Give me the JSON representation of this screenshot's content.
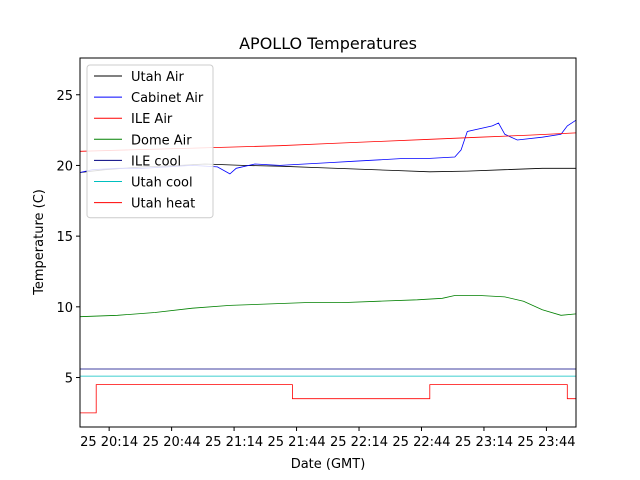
{
  "chart_data": {
    "type": "line",
    "title": "APOLLO Temperatures",
    "xlabel": "Date (GMT)",
    "ylabel": "Temperature (C)",
    "xlim": [
      20.0,
      23.97
    ],
    "ylim": [
      1.5,
      27.6
    ],
    "yticks": [
      5,
      10,
      15,
      20,
      25
    ],
    "xticks": [
      {
        "t": 20.2333,
        "label": "25 20:14"
      },
      {
        "t": 20.7333,
        "label": "25 20:44"
      },
      {
        "t": 21.2333,
        "label": "25 21:14"
      },
      {
        "t": 21.7333,
        "label": "25 21:44"
      },
      {
        "t": 22.2333,
        "label": "25 22:14"
      },
      {
        "t": 22.7333,
        "label": "25 22:44"
      },
      {
        "t": 23.2333,
        "label": "25 23:14"
      },
      {
        "t": 23.7333,
        "label": "25 23:44"
      }
    ],
    "series": [
      {
        "name": "Utah Air",
        "color": "#000000",
        "points": [
          [
            20.0,
            19.5
          ],
          [
            20.2,
            19.7
          ],
          [
            20.5,
            19.9
          ],
          [
            20.8,
            20.0
          ],
          [
            21.0,
            20.1
          ],
          [
            21.3,
            20.0
          ],
          [
            21.6,
            19.95
          ],
          [
            21.9,
            19.85
          ],
          [
            22.2,
            19.75
          ],
          [
            22.5,
            19.65
          ],
          [
            22.8,
            19.55
          ],
          [
            23.1,
            19.6
          ],
          [
            23.4,
            19.7
          ],
          [
            23.7,
            19.8
          ],
          [
            23.97,
            19.8
          ]
        ]
      },
      {
        "name": "Cabinet Air",
        "color": "#0000ff",
        "points": [
          [
            20.0,
            19.5
          ],
          [
            20.1,
            19.7
          ],
          [
            20.3,
            19.8
          ],
          [
            20.5,
            19.8
          ],
          [
            20.7,
            19.9
          ],
          [
            20.9,
            20.0
          ],
          [
            21.1,
            19.9
          ],
          [
            21.2,
            19.4
          ],
          [
            21.25,
            19.8
          ],
          [
            21.4,
            20.1
          ],
          [
            21.6,
            20.0
          ],
          [
            21.8,
            20.1
          ],
          [
            22.0,
            20.2
          ],
          [
            22.2,
            20.3
          ],
          [
            22.4,
            20.4
          ],
          [
            22.6,
            20.5
          ],
          [
            22.8,
            20.5
          ],
          [
            23.0,
            20.6
          ],
          [
            23.05,
            21.1
          ],
          [
            23.1,
            22.4
          ],
          [
            23.3,
            22.8
          ],
          [
            23.35,
            23.0
          ],
          [
            23.4,
            22.2
          ],
          [
            23.5,
            21.8
          ],
          [
            23.7,
            22.0
          ],
          [
            23.85,
            22.2
          ],
          [
            23.9,
            22.8
          ],
          [
            23.97,
            23.2
          ]
        ]
      },
      {
        "name": "ILE Air",
        "color": "#ff0000",
        "points": [
          [
            20.0,
            21.0
          ],
          [
            20.4,
            21.1
          ],
          [
            20.8,
            21.2
          ],
          [
            21.2,
            21.3
          ],
          [
            21.6,
            21.4
          ],
          [
            22.0,
            21.55
          ],
          [
            22.4,
            21.7
          ],
          [
            22.8,
            21.85
          ],
          [
            23.2,
            22.0
          ],
          [
            23.6,
            22.15
          ],
          [
            23.97,
            22.3
          ]
        ]
      },
      {
        "name": "Dome Air",
        "color": "#008000",
        "points": [
          [
            20.0,
            9.3
          ],
          [
            20.3,
            9.4
          ],
          [
            20.6,
            9.6
          ],
          [
            20.9,
            9.9
          ],
          [
            21.2,
            10.1
          ],
          [
            21.5,
            10.2
          ],
          [
            21.8,
            10.3
          ],
          [
            22.1,
            10.3
          ],
          [
            22.4,
            10.4
          ],
          [
            22.7,
            10.5
          ],
          [
            22.9,
            10.6
          ],
          [
            23.0,
            10.8
          ],
          [
            23.2,
            10.8
          ],
          [
            23.4,
            10.7
          ],
          [
            23.55,
            10.4
          ],
          [
            23.7,
            9.8
          ],
          [
            23.85,
            9.4
          ],
          [
            23.97,
            9.5
          ]
        ]
      },
      {
        "name": "ILE cool",
        "color": "#000080",
        "points": [
          [
            20.0,
            5.6
          ],
          [
            23.97,
            5.6
          ]
        ]
      },
      {
        "name": "Utah cool",
        "color": "#00bfbf",
        "points": [
          [
            20.0,
            5.1
          ],
          [
            23.97,
            5.1
          ]
        ]
      },
      {
        "name": "Utah heat",
        "color": "#ff0000",
        "step": true,
        "points": [
          [
            20.0,
            2.5
          ],
          [
            20.13,
            2.5
          ],
          [
            20.13,
            4.5
          ],
          [
            21.7,
            4.5
          ],
          [
            21.7,
            3.5
          ],
          [
            22.8,
            3.5
          ],
          [
            22.8,
            4.5
          ],
          [
            23.9,
            4.5
          ],
          [
            23.9,
            3.5
          ],
          [
            23.97,
            3.5
          ]
        ]
      }
    ]
  }
}
